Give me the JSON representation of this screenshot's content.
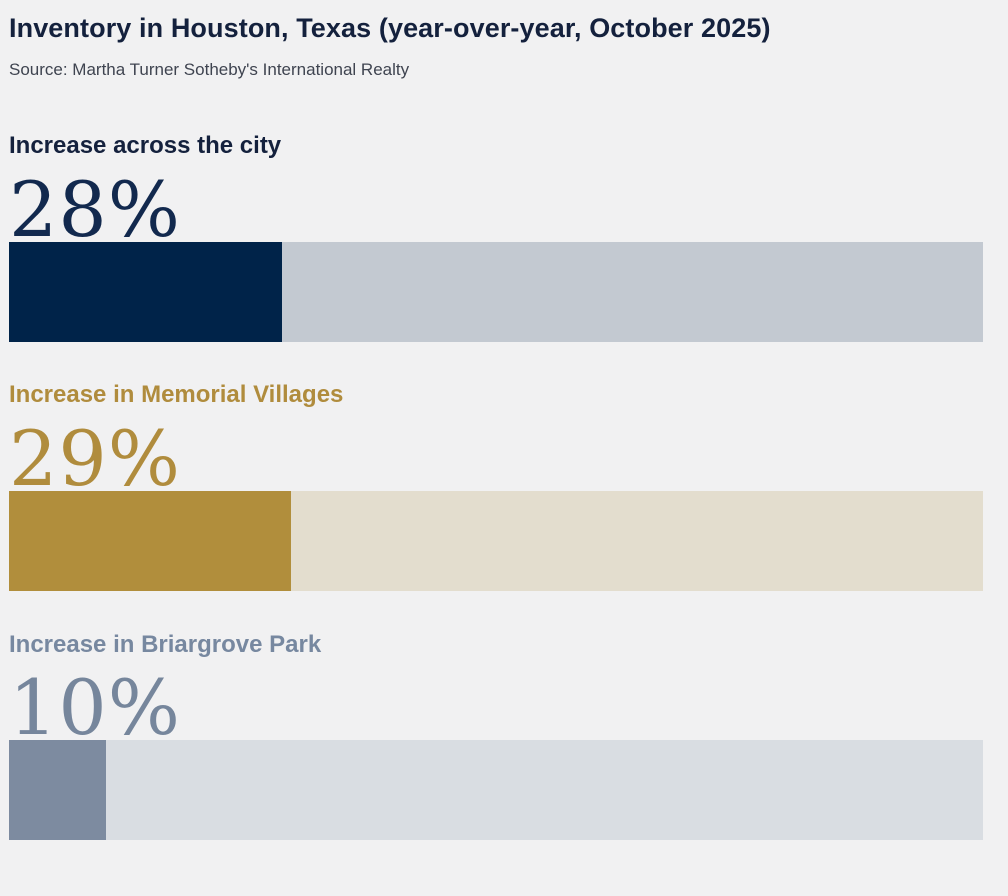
{
  "page": {
    "title": "Inventory in Houston, Texas (year-over-year, October 2025)",
    "source": "Source: Martha Turner Sotheby's International Realty",
    "background_color": "#f1f1f2",
    "title_color": "#14213d",
    "source_color": "#3f4450"
  },
  "chart_data": {
    "type": "bar",
    "orientation": "horizontal",
    "title": "Inventory in Houston, Texas (year-over-year, October 2025)",
    "subtitle": "Source: Martha Turner Sotheby's International Realty",
    "categories": [
      "Increase across the city",
      "Increase in Memorial Villages",
      "Increase in Briargrove Park"
    ],
    "values": [
      28,
      29,
      10
    ],
    "unit": "%",
    "xlim": [
      0,
      100
    ],
    "grid": false,
    "legend": false,
    "series": [
      {
        "label": "Increase across the city",
        "value": 28,
        "display_value": "28%",
        "text_color": "#14213d",
        "number_color": "#12294e",
        "bar_color": "#002349",
        "track_color": "#c3c9d1"
      },
      {
        "label": "Increase in Memorial Villages",
        "value": 29,
        "display_value": "29%",
        "text_color": "#b08c3d",
        "number_color": "#b08c3d",
        "bar_color": "#b18e3c",
        "track_color": "#e3ddce"
      },
      {
        "label": "Increase in Briargrove Park",
        "value": 10,
        "display_value": "10%",
        "text_color": "#7788a0",
        "number_color": "#76869c",
        "bar_color": "#7d8ba0",
        "track_color": "#d9dde2"
      }
    ]
  }
}
